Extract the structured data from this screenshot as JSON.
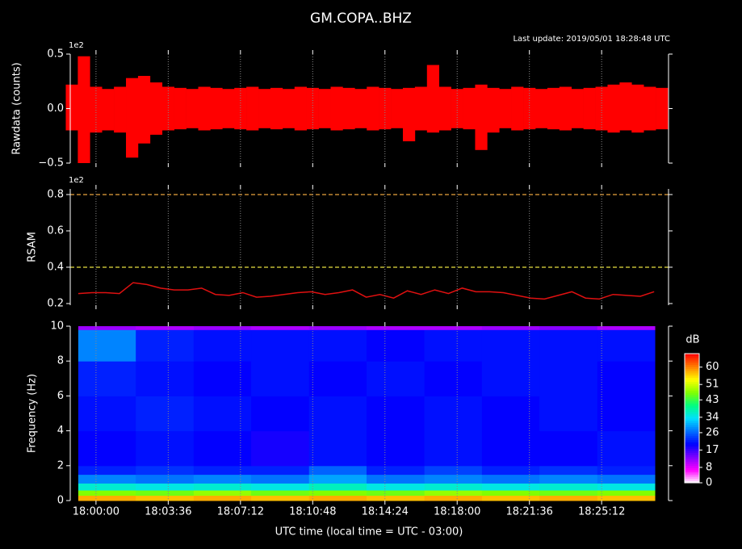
{
  "title": "GM.COPA..BHZ",
  "subtitle": "Last update: 2019/05/01 18:28:48 UTC",
  "x_axis": {
    "label": "UTC time (local time = UTC - 03:00)",
    "lim": [
      -77,
      1712
    ],
    "ticks": [
      {
        "value": 0,
        "label": "18:00:00"
      },
      {
        "value": 216,
        "label": "18:03:36"
      },
      {
        "value": 432,
        "label": "18:07:12"
      },
      {
        "value": 648,
        "label": "18:10:48"
      },
      {
        "value": 864,
        "label": "18:14:24"
      },
      {
        "value": 1080,
        "label": "18:18:00"
      },
      {
        "value": 1296,
        "label": "18:21:36"
      },
      {
        "value": 1512,
        "label": "18:25:12"
      }
    ]
  },
  "chart_data": [
    {
      "type": "envelope",
      "ylabel": "Rawdata (counts)",
      "offset_label": "1e2",
      "ylim": [
        -50,
        50
      ],
      "yticks": [
        {
          "value": -50,
          "label": "−0.5"
        },
        {
          "value": 0,
          "label": "0.0"
        },
        {
          "value": 50,
          "label": "0.5"
        }
      ],
      "series": [
        {
          "color": "#ff0000",
          "x": [
            -72,
            -36,
            0,
            36,
            72,
            108,
            144,
            180,
            216,
            252,
            288,
            324,
            360,
            396,
            432,
            468,
            504,
            540,
            576,
            612,
            648,
            684,
            720,
            756,
            792,
            828,
            864,
            900,
            936,
            972,
            1008,
            1044,
            1080,
            1116,
            1152,
            1188,
            1224,
            1260,
            1296,
            1332,
            1368,
            1404,
            1440,
            1476,
            1512,
            1548,
            1584,
            1620,
            1656,
            1692
          ],
          "upper": [
            22,
            48,
            20,
            18,
            20,
            28,
            30,
            24,
            20,
            19,
            18,
            20,
            19,
            18,
            19,
            20,
            18,
            19,
            18,
            20,
            19,
            18,
            20,
            19,
            18,
            20,
            19,
            18,
            19,
            20,
            40,
            20,
            18,
            19,
            22,
            19,
            18,
            20,
            19,
            18,
            19,
            20,
            18,
            19,
            20,
            22,
            24,
            22,
            20,
            19
          ],
          "lower": [
            -20,
            -50,
            -22,
            -20,
            -22,
            -45,
            -32,
            -24,
            -20,
            -19,
            -18,
            -20,
            -19,
            -18,
            -19,
            -20,
            -18,
            -19,
            -18,
            -20,
            -19,
            -18,
            -20,
            -19,
            -18,
            -20,
            -19,
            -18,
            -30,
            -20,
            -22,
            -20,
            -18,
            -19,
            -38,
            -22,
            -18,
            -20,
            -19,
            -18,
            -19,
            -20,
            -18,
            -19,
            -20,
            -22,
            -20,
            -22,
            -20,
            -19
          ]
        }
      ]
    },
    {
      "type": "line",
      "ylabel": "RSAM",
      "offset_label": "1e2",
      "ylim": [
        19.1,
        83.1
      ],
      "yticks": [
        {
          "value": 20,
          "label": "0.2"
        },
        {
          "value": 40,
          "label": "0.4"
        },
        {
          "value": 60,
          "label": "0.6"
        },
        {
          "value": 80,
          "label": "0.8"
        }
      ],
      "thresholds": [
        {
          "value": 80,
          "color": "#e8a33c"
        },
        {
          "value": 40,
          "color": "#e8e040"
        }
      ],
      "series": [
        {
          "color": "#e01010",
          "x": [
            -53,
            -12,
            29,
            70,
            111,
            152,
            193,
            234,
            275,
            316,
            357,
            398,
            439,
            480,
            521,
            562,
            603,
            644,
            685,
            726,
            767,
            808,
            849,
            890,
            931,
            972,
            1013,
            1054,
            1095,
            1136,
            1177,
            1218,
            1259,
            1300,
            1341,
            1382,
            1423,
            1464,
            1505,
            1546,
            1587,
            1628,
            1669
          ],
          "values": [
            25.5,
            26,
            26,
            25.5,
            31.5,
            30.5,
            28.5,
            27.5,
            27.5,
            28.5,
            25,
            24.5,
            26,
            23.5,
            24,
            25,
            26,
            26.5,
            25,
            26,
            27.5,
            23.5,
            25,
            23,
            27,
            25,
            27.5,
            25.5,
            28.5,
            26.5,
            26.5,
            26,
            24.5,
            23,
            22.5,
            24.5,
            26.5,
            23,
            22.5,
            25,
            24.5,
            24,
            26.5
          ]
        }
      ]
    },
    {
      "type": "heatmap",
      "ylabel": "Frequency (Hz)",
      "ylim": [
        0,
        10
      ],
      "yticks": [
        0,
        2,
        4,
        6,
        8,
        10
      ],
      "time_edges": [
        -53,
        119,
        292,
        464,
        637,
        809,
        982,
        1154,
        1326,
        1499,
        1671
      ],
      "freq_edges": [
        0,
        0.3,
        0.6,
        1,
        1.5,
        2,
        4,
        6,
        8,
        9.8,
        10
      ],
      "z": [
        [
          58,
          57,
          58,
          57,
          58,
          57,
          58,
          57,
          58,
          57
        ],
        [
          47,
          46,
          48,
          46,
          47,
          46,
          48,
          47,
          46,
          47
        ],
        [
          36,
          35,
          36,
          35,
          37,
          35,
          36,
          35,
          36,
          35
        ],
        [
          28,
          27,
          28,
          27,
          30,
          27,
          28,
          27,
          28,
          27
        ],
        [
          22,
          23,
          22,
          22,
          26,
          22,
          24,
          22,
          23,
          22
        ],
        [
          20,
          21,
          20,
          19,
          21,
          20,
          21,
          20,
          20,
          21
        ],
        [
          21,
          22,
          21,
          20,
          21,
          20,
          21,
          20,
          21,
          20
        ],
        [
          22,
          21,
          20,
          21,
          20,
          21,
          20,
          21,
          21,
          20
        ],
        [
          28,
          22,
          21,
          21,
          21,
          20,
          21,
          21,
          21,
          21
        ],
        [
          12,
          11,
          12,
          11,
          12,
          11,
          11,
          12,
          13,
          11
        ]
      ],
      "colorbar": {
        "label": "dB",
        "lim": [
          0,
          67
        ],
        "ticks": [
          0,
          8,
          17,
          26,
          34,
          43,
          51,
          60
        ],
        "colors": [
          "#ffffff",
          "#ff00ff",
          "#8000ff",
          "#0000ff",
          "#0070ff",
          "#00e0ff",
          "#00ff80",
          "#80ff00",
          "#ffff00",
          "#ff8000",
          "#ff0000"
        ]
      }
    }
  ]
}
